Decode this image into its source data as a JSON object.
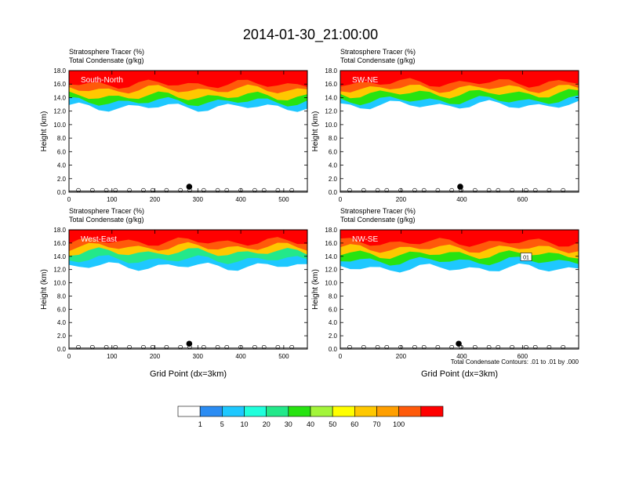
{
  "page": {
    "title": "2014-01-30_21:00:00",
    "contour_note": "Total Condensate Contours: .01 to .01 by .000"
  },
  "chart_data": [
    {
      "type": "heatmap",
      "panel_label": "South-North",
      "title_lines": [
        "Stratosphere Tracer   (%)",
        "Total Condensate   (g/kg)"
      ],
      "ylabel": "Height (km)",
      "xlabel": "",
      "ylim": [
        0,
        18
      ],
      "xlim": [
        0,
        555
      ],
      "xticks": [
        "0",
        "100",
        "200",
        "300",
        "400",
        "500"
      ],
      "yticks": [
        "0.0",
        "2.0",
        "4.0",
        "6.0",
        "8.0",
        "10.0",
        "12.0",
        "14.0",
        "16.0",
        "18.0"
      ],
      "marker_x": 280
    },
    {
      "type": "heatmap",
      "panel_label": "SW-NE",
      "title_lines": [
        "Stratosphere Tracer   (%)",
        "Total Condensate   (g/kg)"
      ],
      "ylabel": "Height (km)",
      "xlabel": "",
      "ylim": [
        0,
        18
      ],
      "xlim": [
        0,
        785
      ],
      "xticks": [
        "0",
        "200",
        "400",
        "600"
      ],
      "yticks": [
        "0.0",
        "2.0",
        "4.0",
        "6.0",
        "8.0",
        "10.0",
        "12.0",
        "14.0",
        "16.0",
        "18.0"
      ],
      "marker_x": 395
    },
    {
      "type": "heatmap",
      "panel_label": "West-East",
      "title_lines": [
        "Stratosphere Tracer   (%)",
        "Total Condensate   (g/kg)"
      ],
      "ylabel": "Height (km)",
      "xlabel": "Grid Point (dx=3km)",
      "ylim": [
        0,
        18
      ],
      "xlim": [
        0,
        555
      ],
      "xticks": [
        "0",
        "100",
        "200",
        "300",
        "400",
        "500"
      ],
      "yticks": [
        "0.0",
        "2.0",
        "4.0",
        "6.0",
        "8.0",
        "10.0",
        "12.0",
        "14.0",
        "16.0",
        "18.0"
      ],
      "marker_x": 280
    },
    {
      "type": "heatmap",
      "panel_label": "NW-SE",
      "title_lines": [
        "Stratosphere Tracer   (%)",
        "Total Condensate   (g/kg)"
      ],
      "ylabel": "Height (km)",
      "xlabel": "Grid Point (dx=3km)",
      "ylim": [
        0,
        18
      ],
      "xlim": [
        0,
        785
      ],
      "xticks": [
        "0",
        "200",
        "400",
        "600"
      ],
      "yticks": [
        "0.0",
        "2.0",
        "4.0",
        "6.0",
        "8.0",
        "10.0",
        "12.0",
        "14.0",
        "16.0",
        "18.0"
      ],
      "marker_x": 390,
      "contour_label": "01"
    }
  ],
  "colorbar": {
    "labels": [
      "1",
      "5",
      "10",
      "20",
      "30",
      "40",
      "50",
      "60",
      "70",
      "100"
    ],
    "colors": [
      "#ffffff",
      "#2b8cf3",
      "#1ec8ff",
      "#20ffdc",
      "#23e88a",
      "#27e311",
      "#a3f53a",
      "#ffff00",
      "#ffc800",
      "#ff9f00",
      "#ff5a0a",
      "#ff0000"
    ]
  }
}
